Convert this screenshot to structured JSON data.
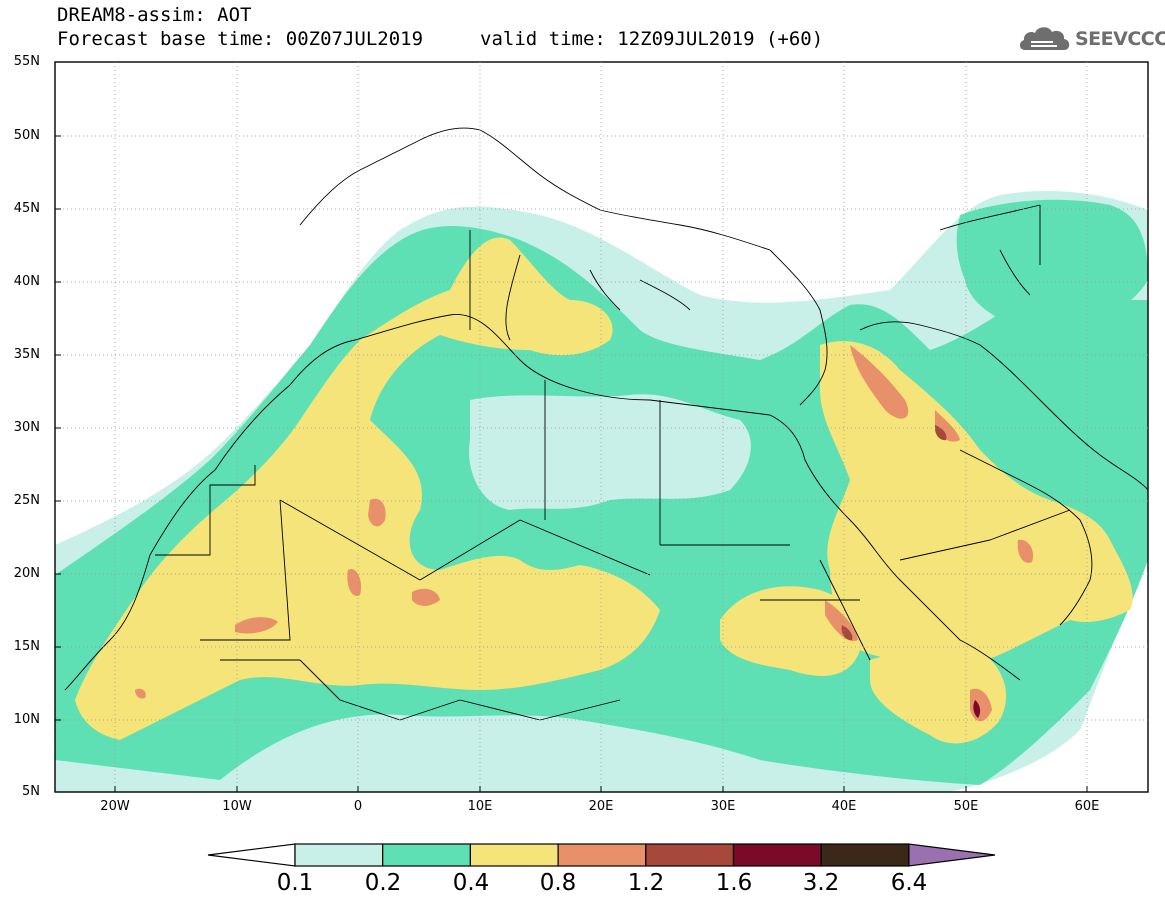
{
  "header": {
    "title": "DREAM8-assim: AOT",
    "base_time": "Forecast base time: 00Z07JUL2019",
    "valid_time": "valid time: 12Z09JUL2019 (+60)"
  },
  "logo": {
    "text": "SEEVCCC",
    "icon": "cloud-logo-icon"
  },
  "map": {
    "lat_ticks": [
      "55N",
      "50N",
      "45N",
      "40N",
      "35N",
      "30N",
      "25N",
      "20N",
      "15N",
      "10N",
      "5N"
    ],
    "lon_ticks": [
      "20W",
      "10W",
      "0",
      "10E",
      "20E",
      "30E",
      "40E",
      "50E",
      "60E"
    ],
    "lat_range": [
      5,
      55
    ],
    "lon_range": [
      -25,
      65
    ],
    "field": "Aerosol Optical Thickness"
  },
  "colorbar": {
    "labels": [
      "0.1",
      "0.2",
      "0.4",
      "0.8",
      "1.2",
      "1.6",
      "3.2",
      "6.4"
    ],
    "colors": [
      "#ffffff",
      "#c8f0e8",
      "#5ee0b4",
      "#f5e47a",
      "#e8906a",
      "#a8483a",
      "#7a0a28",
      "#3c2818",
      "#9a70b0"
    ],
    "extend": "both"
  }
}
